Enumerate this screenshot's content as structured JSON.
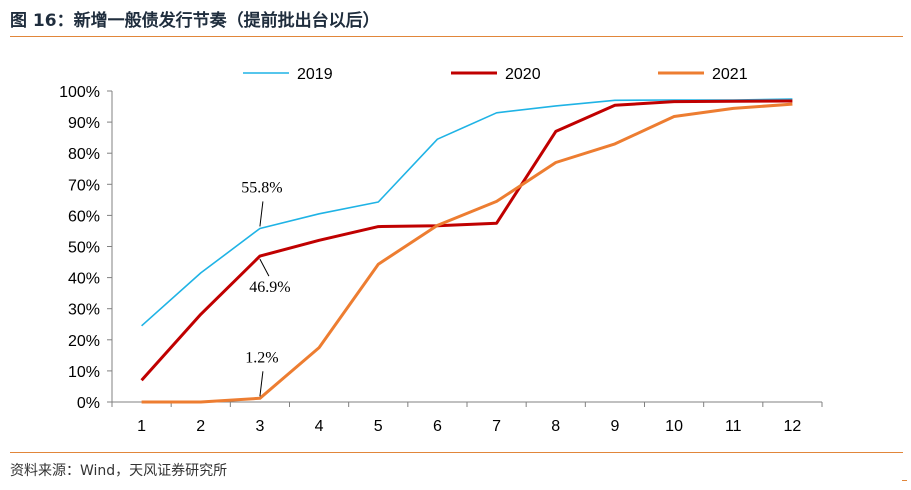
{
  "page": {
    "title": "图 16：新增一般债发行节奏（提前批出台以后）",
    "source": "资料来源：Wind，天风证券研究所"
  },
  "colors": {
    "accent_rule": "#e1863a",
    "series_2019": "#1fb3e5",
    "series_2020": "#c00000",
    "series_2021": "#ed7d31"
  },
  "chart_data": {
    "type": "line",
    "x": [
      1,
      2,
      3,
      4,
      5,
      6,
      7,
      8,
      9,
      10,
      11,
      12
    ],
    "x_tick_labels": [
      "1",
      "2",
      "3",
      "4",
      "5",
      "6",
      "7",
      "8",
      "9",
      "10",
      "11",
      "12"
    ],
    "y_tick_labels": [
      "0%",
      "10%",
      "20%",
      "30%",
      "40%",
      "50%",
      "60%",
      "70%",
      "80%",
      "90%",
      "100%"
    ],
    "ylim": [
      0,
      100
    ],
    "y_unit": "%",
    "grid": false,
    "legend": "top-center",
    "series": [
      {
        "name": "2019",
        "color": "#1fb3e5",
        "width": 1.6,
        "values": [
          24.5,
          41.5,
          55.8,
          60.5,
          64.3,
          84.5,
          93.0,
          95.2,
          97.0,
          97.1,
          97.1,
          97.4
        ]
      },
      {
        "name": "2020",
        "color": "#c00000",
        "width": 3.0,
        "values": [
          7.0,
          28.2,
          46.9,
          52.0,
          56.4,
          56.7,
          57.5,
          87.0,
          95.4,
          96.6,
          96.7,
          96.8
        ]
      },
      {
        "name": "2021",
        "color": "#ed7d31",
        "width": 3.0,
        "values": [
          0.0,
          0.0,
          1.2,
          17.5,
          44.3,
          56.8,
          64.5,
          77.0,
          83.0,
          91.8,
          94.4,
          95.8
        ]
      }
    ],
    "annotations": [
      {
        "text": "55.8%",
        "x": 3,
        "y": 55.8,
        "side": "above"
      },
      {
        "text": "46.9%",
        "x": 3,
        "y": 46.9,
        "side": "below"
      },
      {
        "text": "1.2%",
        "x": 3,
        "y": 1.2,
        "side": "above"
      }
    ]
  }
}
